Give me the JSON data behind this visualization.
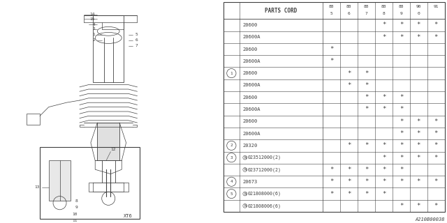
{
  "watermark": "A210B00038",
  "xt6_label": "XT6",
  "table": {
    "header_col": "PARTS CORD",
    "year_cols": [
      "88\n5",
      "88\n6",
      "88\n7",
      "88\n8",
      "88\n9",
      "90\n0",
      "91"
    ],
    "rows": [
      {
        "ref": "",
        "part": "20600",
        "marks": [
          0,
          0,
          0,
          1,
          1,
          1,
          1
        ]
      },
      {
        "ref": "",
        "part": "20600A",
        "marks": [
          0,
          0,
          0,
          1,
          1,
          1,
          1
        ]
      },
      {
        "ref": "",
        "part": "20600",
        "marks": [
          1,
          0,
          0,
          0,
          0,
          0,
          0
        ]
      },
      {
        "ref": "",
        "part": "20600A",
        "marks": [
          1,
          0,
          0,
          0,
          0,
          0,
          0
        ]
      },
      {
        "ref": "1",
        "part": "20600",
        "marks": [
          0,
          1,
          1,
          0,
          0,
          0,
          0
        ]
      },
      {
        "ref": "1",
        "part": "20600A",
        "marks": [
          0,
          1,
          1,
          0,
          0,
          0,
          0
        ]
      },
      {
        "ref": "",
        "part": "20600",
        "marks": [
          0,
          0,
          1,
          1,
          1,
          0,
          0
        ]
      },
      {
        "ref": "",
        "part": "20600A",
        "marks": [
          0,
          0,
          1,
          1,
          1,
          0,
          0
        ]
      },
      {
        "ref": "",
        "part": "20600",
        "marks": [
          0,
          0,
          0,
          0,
          1,
          1,
          1
        ]
      },
      {
        "ref": "",
        "part": "20600A",
        "marks": [
          0,
          0,
          0,
          0,
          1,
          1,
          1
        ]
      },
      {
        "ref": "2",
        "part": "20320",
        "marks": [
          0,
          1,
          1,
          1,
          1,
          1,
          1
        ]
      },
      {
        "ref": "3",
        "part": "N023512000(2)",
        "marks": [
          0,
          0,
          0,
          1,
          1,
          1,
          1
        ]
      },
      {
        "ref": "3",
        "part": "N023712000(2)",
        "marks": [
          1,
          1,
          1,
          1,
          1,
          0,
          0
        ]
      },
      {
        "ref": "4",
        "part": "20673",
        "marks": [
          1,
          1,
          1,
          1,
          1,
          1,
          1
        ]
      },
      {
        "ref": "5",
        "part": "N021808000(6)",
        "marks": [
          1,
          1,
          1,
          1,
          0,
          0,
          0
        ]
      },
      {
        "ref": "5",
        "part": "N021808006(6)",
        "marks": [
          0,
          0,
          0,
          0,
          1,
          1,
          1
        ]
      }
    ]
  },
  "bg_color": "#ffffff",
  "line_color": "#404040",
  "text_color": "#404040"
}
